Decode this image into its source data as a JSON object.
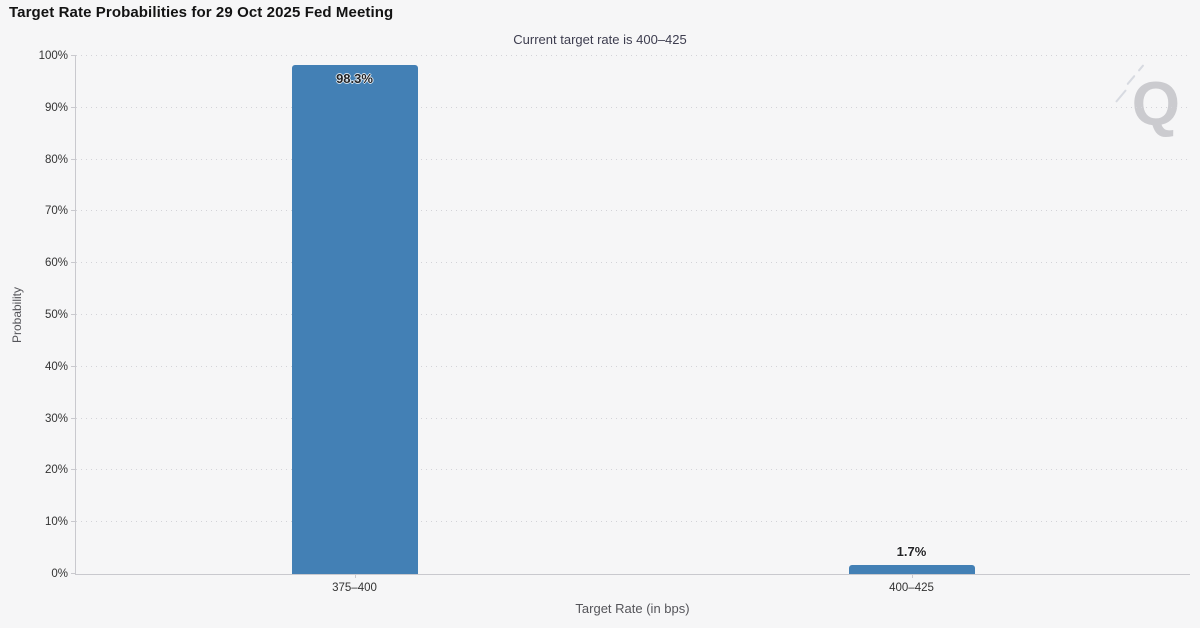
{
  "header": {
    "title": "Target Rate Probabilities for 29 Oct 2025 Fed Meeting"
  },
  "watermark": {
    "letter": "Q"
  },
  "colors": {
    "background": "#f6f6f7",
    "bar": "#4380b5",
    "axis": "#c9c9ce",
    "grid": "#d3d3d8",
    "title_text": "#131313",
    "subtitle_text": "#3d3d4f",
    "tick_text": "#333333",
    "axis_title_text": "#55555a"
  },
  "chart_data": {
    "type": "bar",
    "title": "Target Rate Probabilities for 29 Oct 2025 Fed Meeting",
    "subtitle": "Current target rate is 400–425",
    "categories": [
      "375–400",
      "400–425"
    ],
    "values": [
      98.3,
      1.7
    ],
    "value_labels": [
      "98.3%",
      "1.7%"
    ],
    "xlabel": "Target Rate (in bps)",
    "ylabel": "Probability",
    "ylim": [
      0,
      100
    ],
    "y_tick_step": 10,
    "y_tick_suffix": "%",
    "grid": true,
    "legend": false
  }
}
